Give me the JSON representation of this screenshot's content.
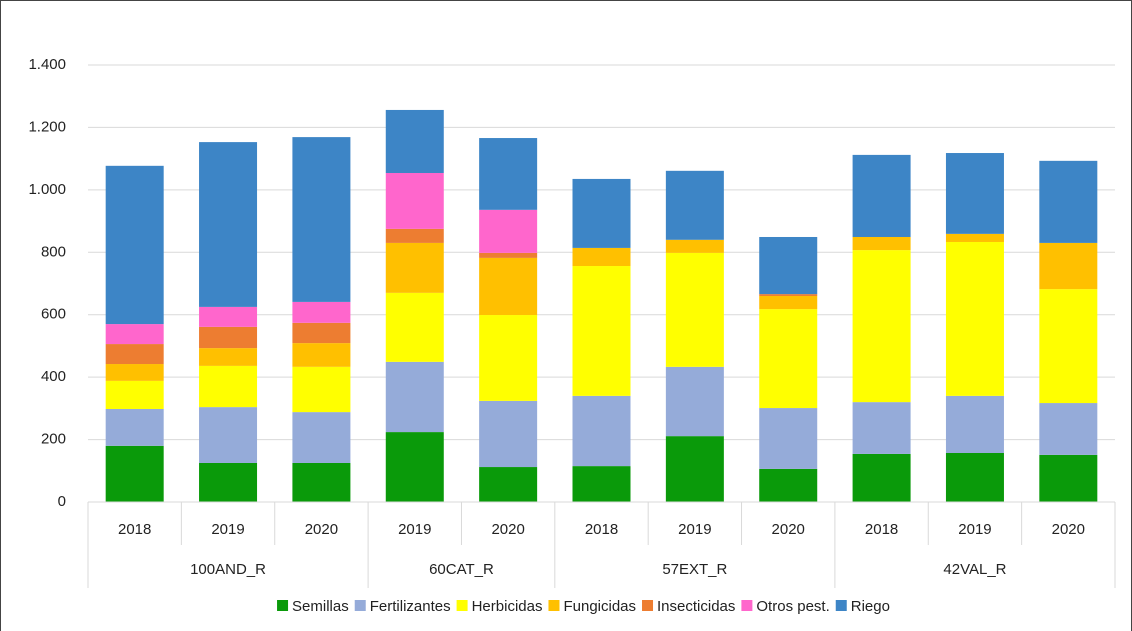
{
  "chart_data": {
    "type": "stacked_bar",
    "categories": [
      "2018",
      "2019",
      "2020",
      "2019",
      "2020",
      "2018",
      "2019",
      "2020",
      "2018",
      "2019",
      "2020"
    ],
    "group_labels": [
      "100AND_R",
      "60CAT_R",
      "57EXT_R",
      "42VAL_R"
    ],
    "group_sizes": [
      3,
      2,
      3,
      3
    ],
    "series": [
      {
        "name": "Semillas",
        "color": "#0a9a0a",
        "values": [
          180,
          125,
          125,
          224,
          112,
          115,
          211,
          106,
          154,
          157,
          151
        ]
      },
      {
        "name": "Fertilizantes",
        "color": "#95abd9",
        "values": [
          118,
          179,
          163,
          225,
          212,
          225,
          222,
          195,
          166,
          183,
          166
        ]
      },
      {
        "name": "Herbicidas",
        "color": "#ffff00",
        "values": [
          90,
          132,
          145,
          221,
          275,
          416,
          365,
          317,
          487,
          493,
          365
        ]
      },
      {
        "name": "Fungicidas",
        "color": "#ffc000",
        "values": [
          54,
          57,
          76,
          160,
          183,
          58,
          42,
          42,
          42,
          26,
          148
        ]
      },
      {
        "name": "Insecticidas",
        "color": "#ed7d31",
        "values": [
          64,
          68,
          65,
          45,
          16,
          0,
          0,
          6,
          0,
          0,
          0
        ]
      },
      {
        "name": "Otros pest.",
        "color": "#ff66cc",
        "values": [
          64,
          64,
          67,
          179,
          138,
          0,
          0,
          0,
          0,
          0,
          0
        ]
      },
      {
        "name": "Riego",
        "color": "#3d85c6",
        "values": [
          507,
          528,
          528,
          202,
          230,
          221,
          221,
          183,
          263,
          259,
          263
        ]
      }
    ],
    "ylim": [
      0,
      1400
    ],
    "yticks": [
      0,
      200,
      400,
      600,
      800,
      {
        "value": 1000,
        "label": "1.000"
      },
      {
        "value": 1200,
        "label": "1.200"
      },
      {
        "value": 1400,
        "label": "1.400"
      }
    ],
    "grid": true,
    "legend": "bottom"
  }
}
